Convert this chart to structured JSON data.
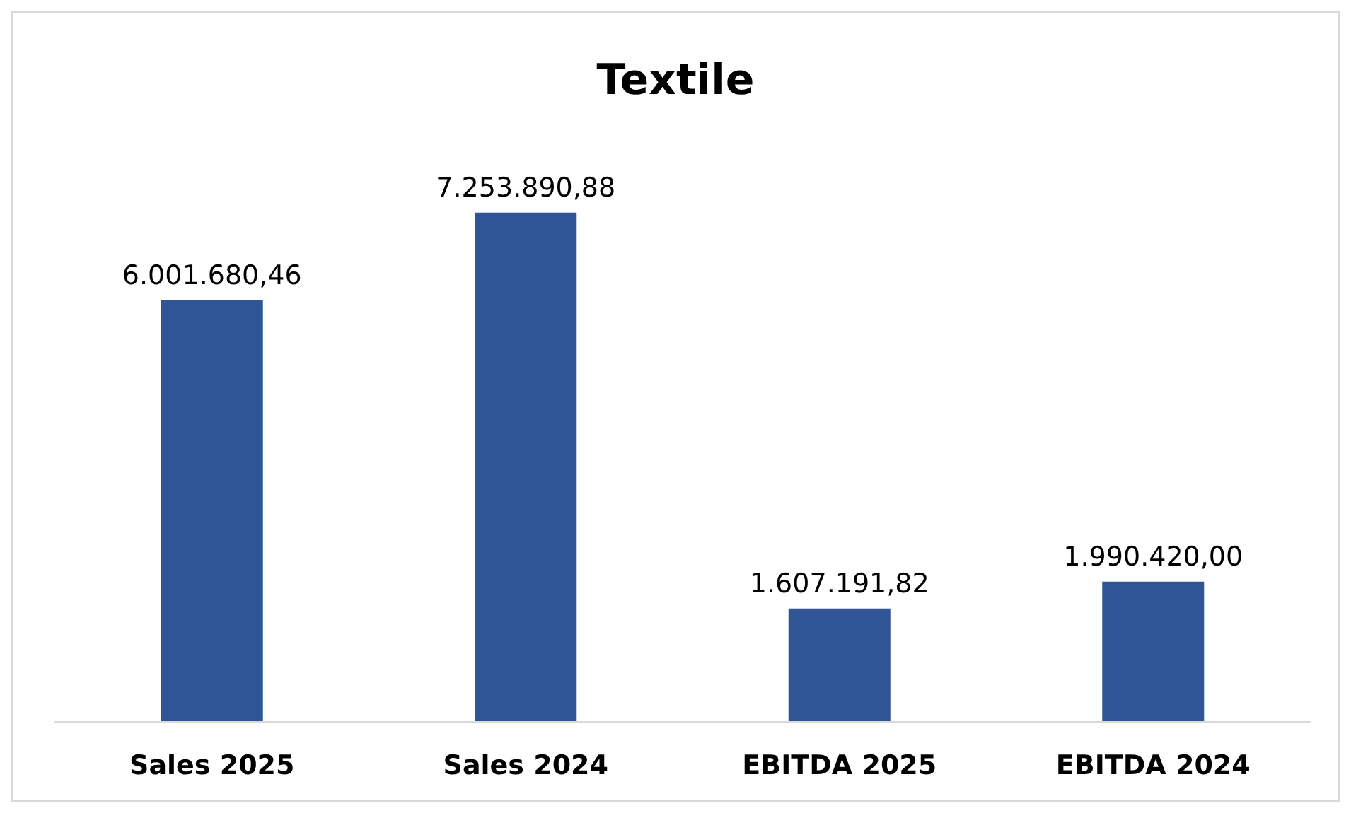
{
  "chart_data": {
    "type": "bar",
    "title": "Textile",
    "categories": [
      "Sales 2025",
      "Sales 2024",
      "EBITDA 2025",
      "EBITDA 2024"
    ],
    "values": [
      6001680.46,
      7253890.88,
      1607191.82,
      1990420.0
    ],
    "value_labels": [
      "6.001.680,46",
      "7.253.890,88",
      "1.607.191,82",
      "1.990.420,00"
    ],
    "color": "#2f5597"
  }
}
